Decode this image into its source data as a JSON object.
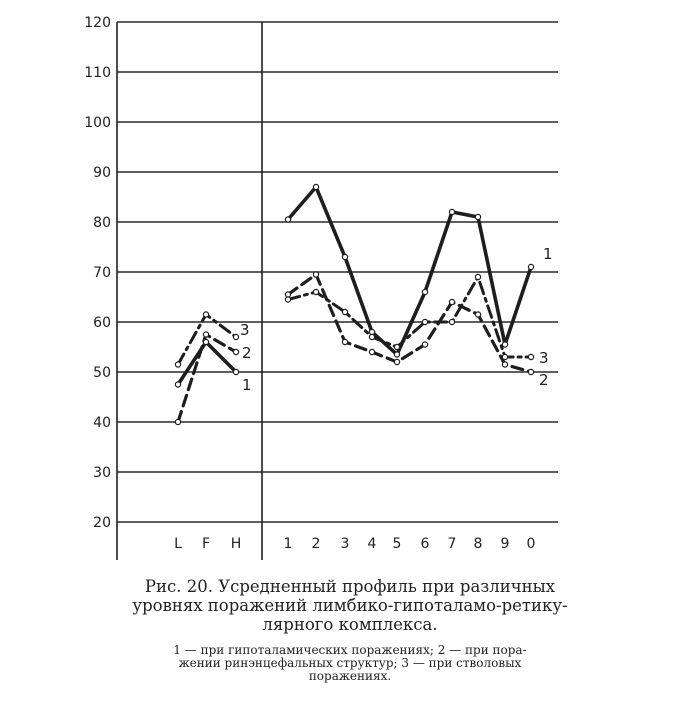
{
  "chart_data": {
    "type": "line",
    "y_ticks": [
      20,
      30,
      40,
      50,
      60,
      70,
      80,
      90,
      100,
      110,
      120
    ],
    "ylim": [
      20,
      120
    ],
    "left_categories": [
      "L",
      "F",
      "H"
    ],
    "right_categories": [
      "1",
      "2",
      "3",
      "4",
      "5",
      "6",
      "7",
      "8",
      "9",
      "0"
    ],
    "grid": true,
    "series": [
      {
        "name": "1",
        "style": "solid",
        "left_values": [
          47.5,
          56,
          50
        ],
        "right_values": [
          80.5,
          87,
          73,
          58,
          53.5,
          66,
          82,
          81,
          55.5,
          71
        ]
      },
      {
        "name": "2",
        "style": "dashed",
        "left_values": [
          40,
          57.5,
          54
        ],
        "right_values": [
          65.5,
          69.5,
          56,
          54,
          52,
          55.5,
          64,
          61.5,
          51.5,
          50
        ]
      },
      {
        "name": "3",
        "style": "dashdot",
        "left_values": [
          51.5,
          61.5,
          57
        ],
        "right_values": [
          64.5,
          66,
          62,
          57,
          55,
          60,
          60,
          69,
          53,
          53
        ]
      }
    ]
  },
  "caption": {
    "title_line1": "Рис. 20. Усредненный профиль при различных",
    "title_line2": "уровнях поражений лимбико-гипоталамо-ретику-",
    "title_line3": "лярного комплекса.",
    "legend_line1": "1 — при гипоталамических поражениях; 2 — при пора-",
    "legend_line2": "жении ринэнцефальных структур; 3 — при стволовых",
    "legend_line3": "поражениях."
  }
}
